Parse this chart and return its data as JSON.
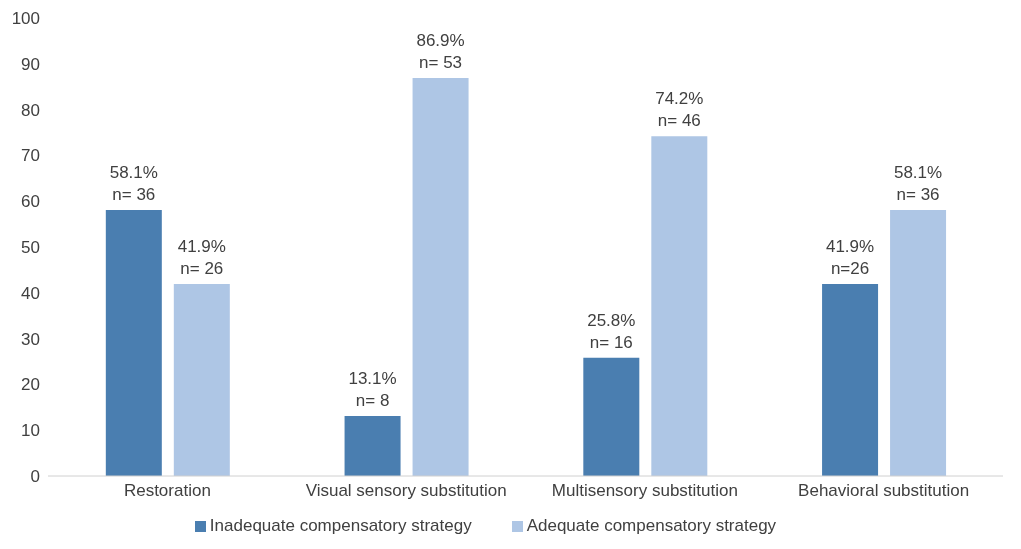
{
  "chart_data": {
    "type": "bar",
    "categories": [
      "Restoration",
      "Visual sensory substitution",
      "Multisensory substitution",
      "Behavioral substitution"
    ],
    "series": [
      {
        "name": "Inadequate compensatory strategy",
        "color": "#4a7eb0",
        "values": [
          58.1,
          13.1,
          25.8,
          41.9
        ],
        "value_labels": [
          "58.1%\nn= 36",
          "13.1%\nn= 8",
          "25.8%\nn= 16",
          "41.9%\nn=26"
        ]
      },
      {
        "name": "Adequate compensatory strategy",
        "color": "#aec6e5",
        "values": [
          41.9,
          86.9,
          74.2,
          58.1
        ],
        "value_labels": [
          "41.9%\nn= 26",
          "86.9%\nn= 53",
          "74.2%\nn= 46",
          "58.1%\nn= 36"
        ]
      }
    ],
    "ylim": [
      0,
      100
    ],
    "yticks": [
      0,
      10,
      20,
      30,
      40,
      50,
      60,
      70,
      80,
      90,
      100
    ],
    "grid": false,
    "legend": "bottom"
  }
}
